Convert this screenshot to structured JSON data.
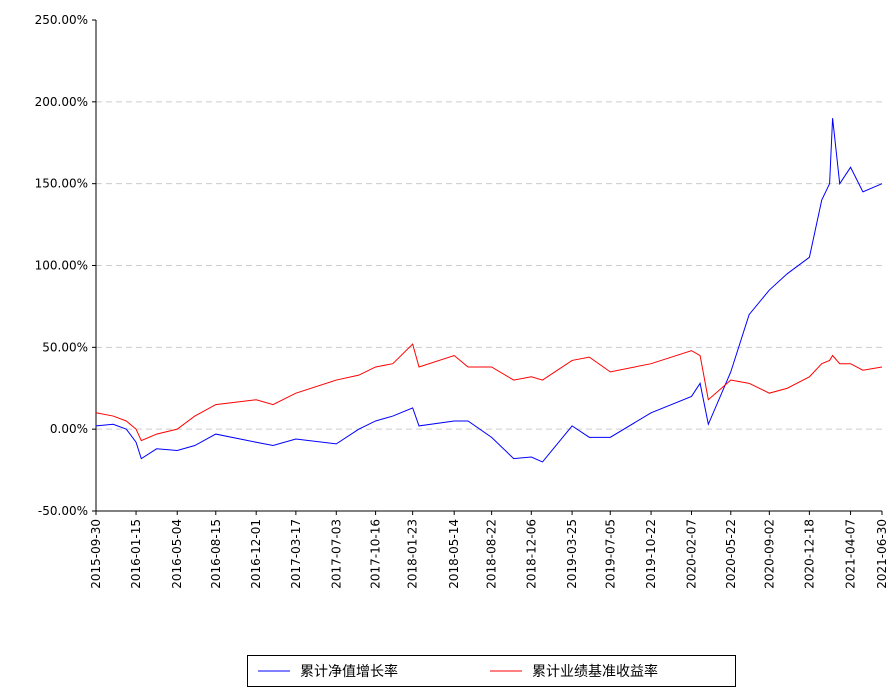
{
  "chart_data": {
    "type": "line",
    "x": [
      "2015-09-30",
      "2015-11-15",
      "2015-12-20",
      "2016-01-15",
      "2016-01-29",
      "2016-03-10",
      "2016-05-04",
      "2016-06-20",
      "2016-08-15",
      "2016-12-01",
      "2017-01-15",
      "2017-03-17",
      "2017-07-03",
      "2017-09-01",
      "2017-10-16",
      "2017-12-01",
      "2018-01-23",
      "2018-02-09",
      "2018-05-14",
      "2018-06-20",
      "2018-08-22",
      "2018-10-20",
      "2018-12-06",
      "2019-01-05",
      "2019-03-25",
      "2019-05-10",
      "2019-07-05",
      "2019-10-22",
      "2020-02-07",
      "2020-03-01",
      "2020-03-23",
      "2020-05-22",
      "2020-07-10",
      "2020-09-02",
      "2020-10-20",
      "2020-12-18",
      "2021-01-20",
      "2021-02-10",
      "2021-02-18",
      "2021-03-09",
      "2021-04-07",
      "2021-05-10",
      "2021-06-30"
    ],
    "series": [
      {
        "name": "累计净值增长率",
        "color": "#0000ff",
        "values": [
          2,
          3,
          0,
          -8,
          -18,
          -12,
          -13,
          -10,
          -3,
          -8,
          -10,
          -6,
          -9,
          0,
          5,
          8,
          13,
          2,
          5,
          5,
          -5,
          -18,
          -17,
          -20,
          2,
          -5,
          -5,
          10,
          20,
          28,
          3,
          35,
          70,
          85,
          95,
          105,
          140,
          150,
          190,
          150,
          160,
          145,
          150
        ]
      },
      {
        "name": "累计业绩基准收益率",
        "color": "#ff0000",
        "values": [
          10,
          8,
          5,
          0,
          -7,
          -3,
          0,
          8,
          15,
          18,
          15,
          22,
          30,
          33,
          38,
          40,
          52,
          38,
          45,
          38,
          38,
          30,
          32,
          30,
          42,
          44,
          35,
          40,
          48,
          45,
          18,
          30,
          28,
          22,
          25,
          32,
          40,
          42,
          45,
          40,
          40,
          36,
          38
        ]
      }
    ],
    "xlim": [
      "2015-09-30",
      "2021-06-30"
    ],
    "xticks": [
      "2015-09-30",
      "2016-01-15",
      "2016-05-04",
      "2016-08-15",
      "2016-12-01",
      "2017-03-17",
      "2017-07-03",
      "2017-10-16",
      "2018-01-23",
      "2018-05-14",
      "2018-08-22",
      "2018-12-06",
      "2019-03-25",
      "2019-07-05",
      "2019-10-22",
      "2020-02-07",
      "2020-05-22",
      "2020-09-02",
      "2020-12-18",
      "2021-04-07",
      "2021-06-30"
    ],
    "ylim": [
      -50,
      250
    ],
    "yticks": [
      {
        "value": -50,
        "label": "-50.00%"
      },
      {
        "value": 0,
        "label": "0.00%"
      },
      {
        "value": 50,
        "label": "50.00%"
      },
      {
        "value": 100,
        "label": "100.00%"
      },
      {
        "value": 150,
        "label": "150.00%"
      },
      {
        "value": 200,
        "label": "200.00%"
      },
      {
        "value": 250,
        "label": "250.00%"
      }
    ],
    "grid": true,
    "legend": "bottom"
  }
}
